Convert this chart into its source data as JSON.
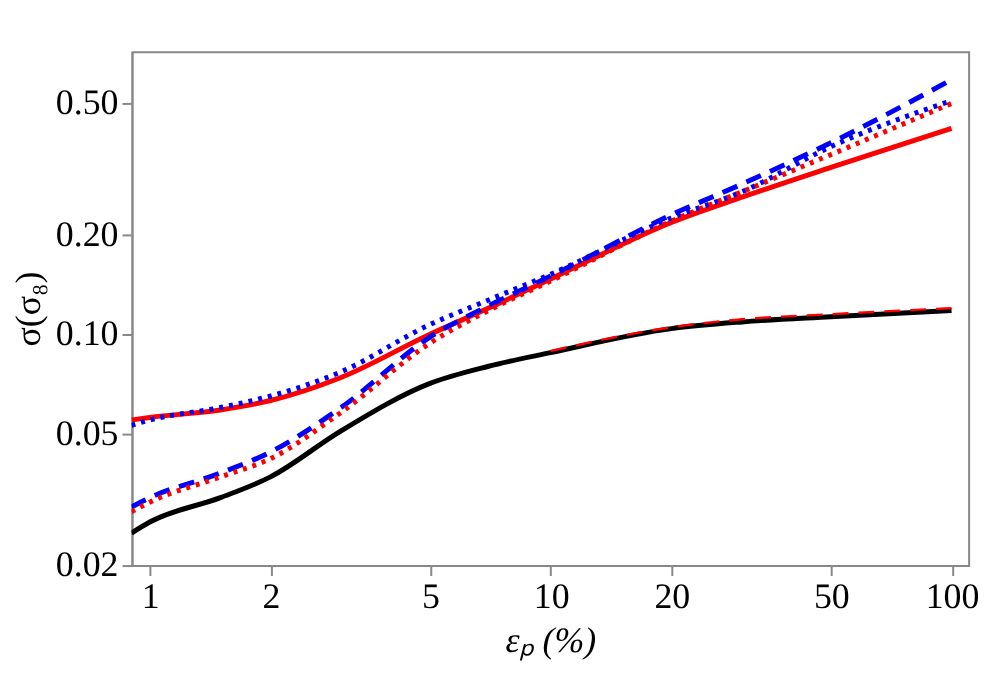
{
  "chart_data": {
    "type": "line",
    "xlabel": "εₚ (%)",
    "ylabel": "σ(σ₈)",
    "log": "xy",
    "grid": false,
    "xlim": [
      0.9,
      110
    ],
    "ylim": [
      0.02,
      0.72
    ],
    "xticks": [
      1,
      2,
      5,
      10,
      20,
      50,
      100
    ],
    "yticks": [
      {
        "value": 0.02,
        "label": "0.02"
      },
      {
        "value": 0.05,
        "label": "0.05"
      },
      {
        "value": 0.1,
        "label": "0.10"
      },
      {
        "value": 0.2,
        "label": "0.20"
      },
      {
        "value": 0.5,
        "label": "0.50"
      }
    ],
    "x": [
      0.9,
      1,
      1.5,
      2,
      3,
      5,
      7,
      10,
      20,
      30,
      50,
      100
    ],
    "series": [
      {
        "color": "#000000",
        "line_style": "solid",
        "values": [
          0.025,
          0.027,
          0.032,
          0.037,
          0.051,
          0.071,
          0.08,
          0.088,
          0.104,
          0.109,
          0.113,
          0.118
        ]
      },
      {
        "color": "#ff0000",
        "line_style": "dashed",
        "x": [
          10,
          20,
          30,
          50,
          100
        ],
        "values": [
          0.089,
          0.105,
          0.111,
          0.115,
          0.12
        ]
      },
      {
        "color": "#ff0000",
        "line_style": "solid",
        "values": [
          0.055,
          0.056,
          0.059,
          0.063,
          0.074,
          0.1,
          0.12,
          0.147,
          0.218,
          0.26,
          0.32,
          0.42
        ]
      },
      {
        "color": "#0000ff",
        "line_style": "dotted",
        "values": [
          0.053,
          0.055,
          0.06,
          0.065,
          0.077,
          0.107,
          0.127,
          0.152,
          0.225,
          0.27,
          0.37,
          0.51
        ]
      },
      {
        "color": "#0000ff",
        "line_style": "dashed",
        "values": [
          0.03,
          0.032,
          0.038,
          0.044,
          0.06,
          0.098,
          0.122,
          0.15,
          0.23,
          0.285,
          0.38,
          0.59
        ]
      },
      {
        "color": "#ff0000",
        "line_style": "dotted",
        "values": [
          0.029,
          0.031,
          0.037,
          0.042,
          0.058,
          0.094,
          0.118,
          0.145,
          0.22,
          0.27,
          0.35,
          0.5
        ]
      }
    ]
  }
}
